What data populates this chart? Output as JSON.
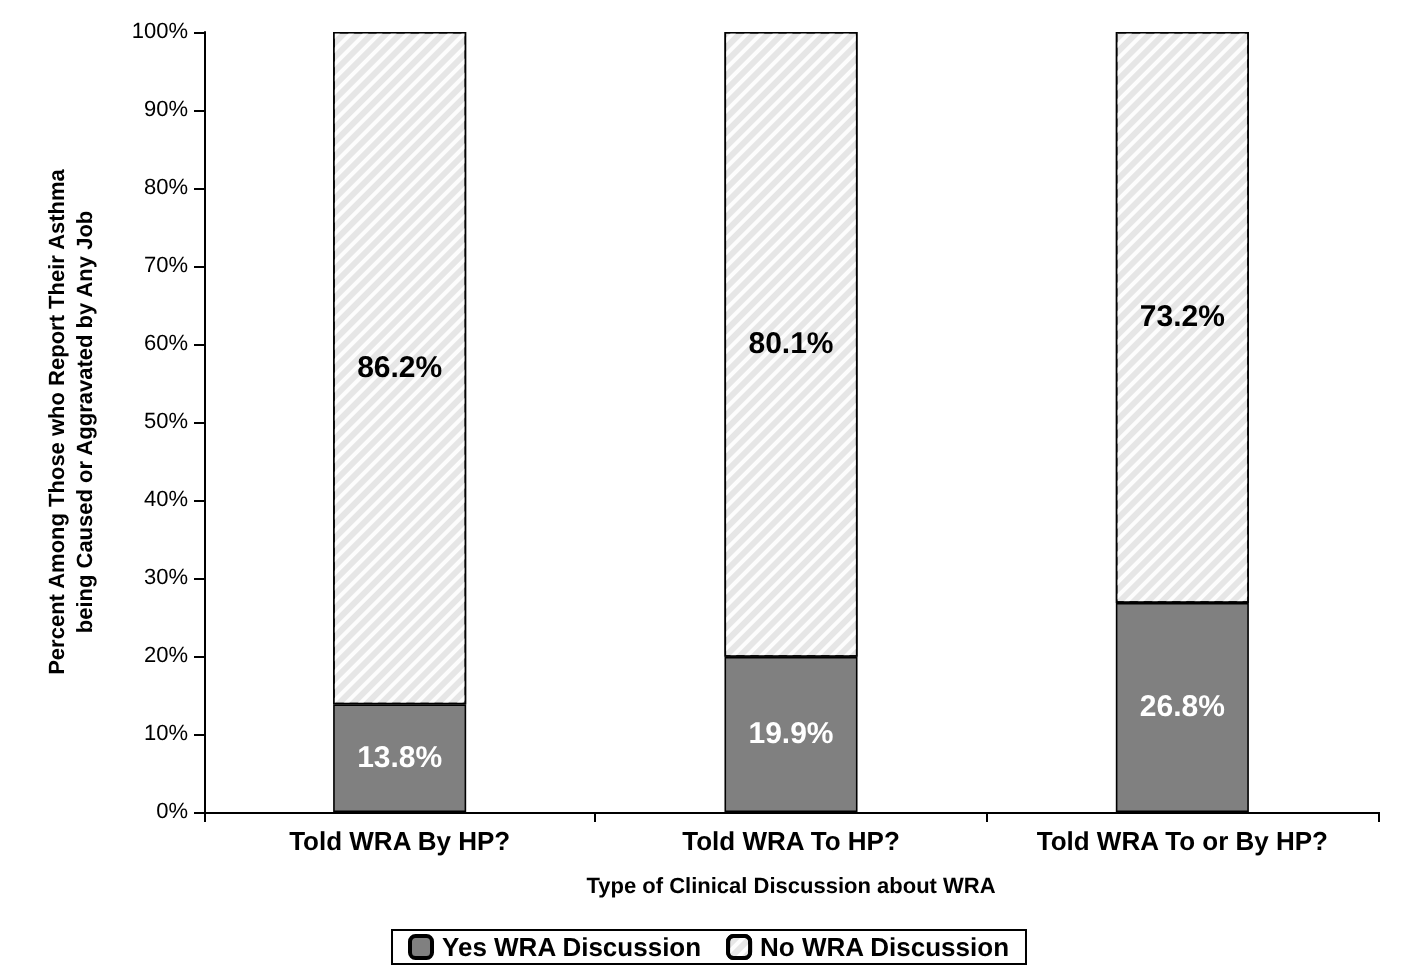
{
  "chart_data": {
    "type": "bar",
    "stacked": true,
    "xlabel": "Type of Clinical Discussion about WRA",
    "ylabel": "Percent Among Those who Report Their Asthma being Caused or Aggravated by Any Job",
    "categories": [
      "Told WRA By HP?",
      "Told WRA To HP?",
      "Told WRA To or By HP?"
    ],
    "series": [
      {
        "name": "Yes WRA Discussion",
        "color": "#808080",
        "values": [
          13.8,
          19.9,
          26.8
        ],
        "value_labels": [
          "13.8%",
          "19.9%",
          "26.8%"
        ]
      },
      {
        "name": "No WRA Discussion",
        "color": "#e6e6e6",
        "values": [
          86.2,
          80.1,
          73.2
        ],
        "value_labels": [
          "86.2%",
          "80.1%",
          "73.2%"
        ]
      }
    ],
    "ylim": [
      0,
      100
    ],
    "yticks": [
      {
        "value": 0,
        "label": "0%"
      },
      {
        "value": 10,
        "label": "10%"
      },
      {
        "value": 20,
        "label": "20%"
      },
      {
        "value": 30,
        "label": "30%"
      },
      {
        "value": 40,
        "label": "40%"
      },
      {
        "value": 50,
        "label": "50%"
      },
      {
        "value": 60,
        "label": "60%"
      },
      {
        "value": 70,
        "label": "70%"
      },
      {
        "value": 80,
        "label": "80%"
      },
      {
        "value": 90,
        "label": "90%"
      },
      {
        "value": 100,
        "label": "100%"
      }
    ],
    "grid": false,
    "legend": "bottom"
  }
}
